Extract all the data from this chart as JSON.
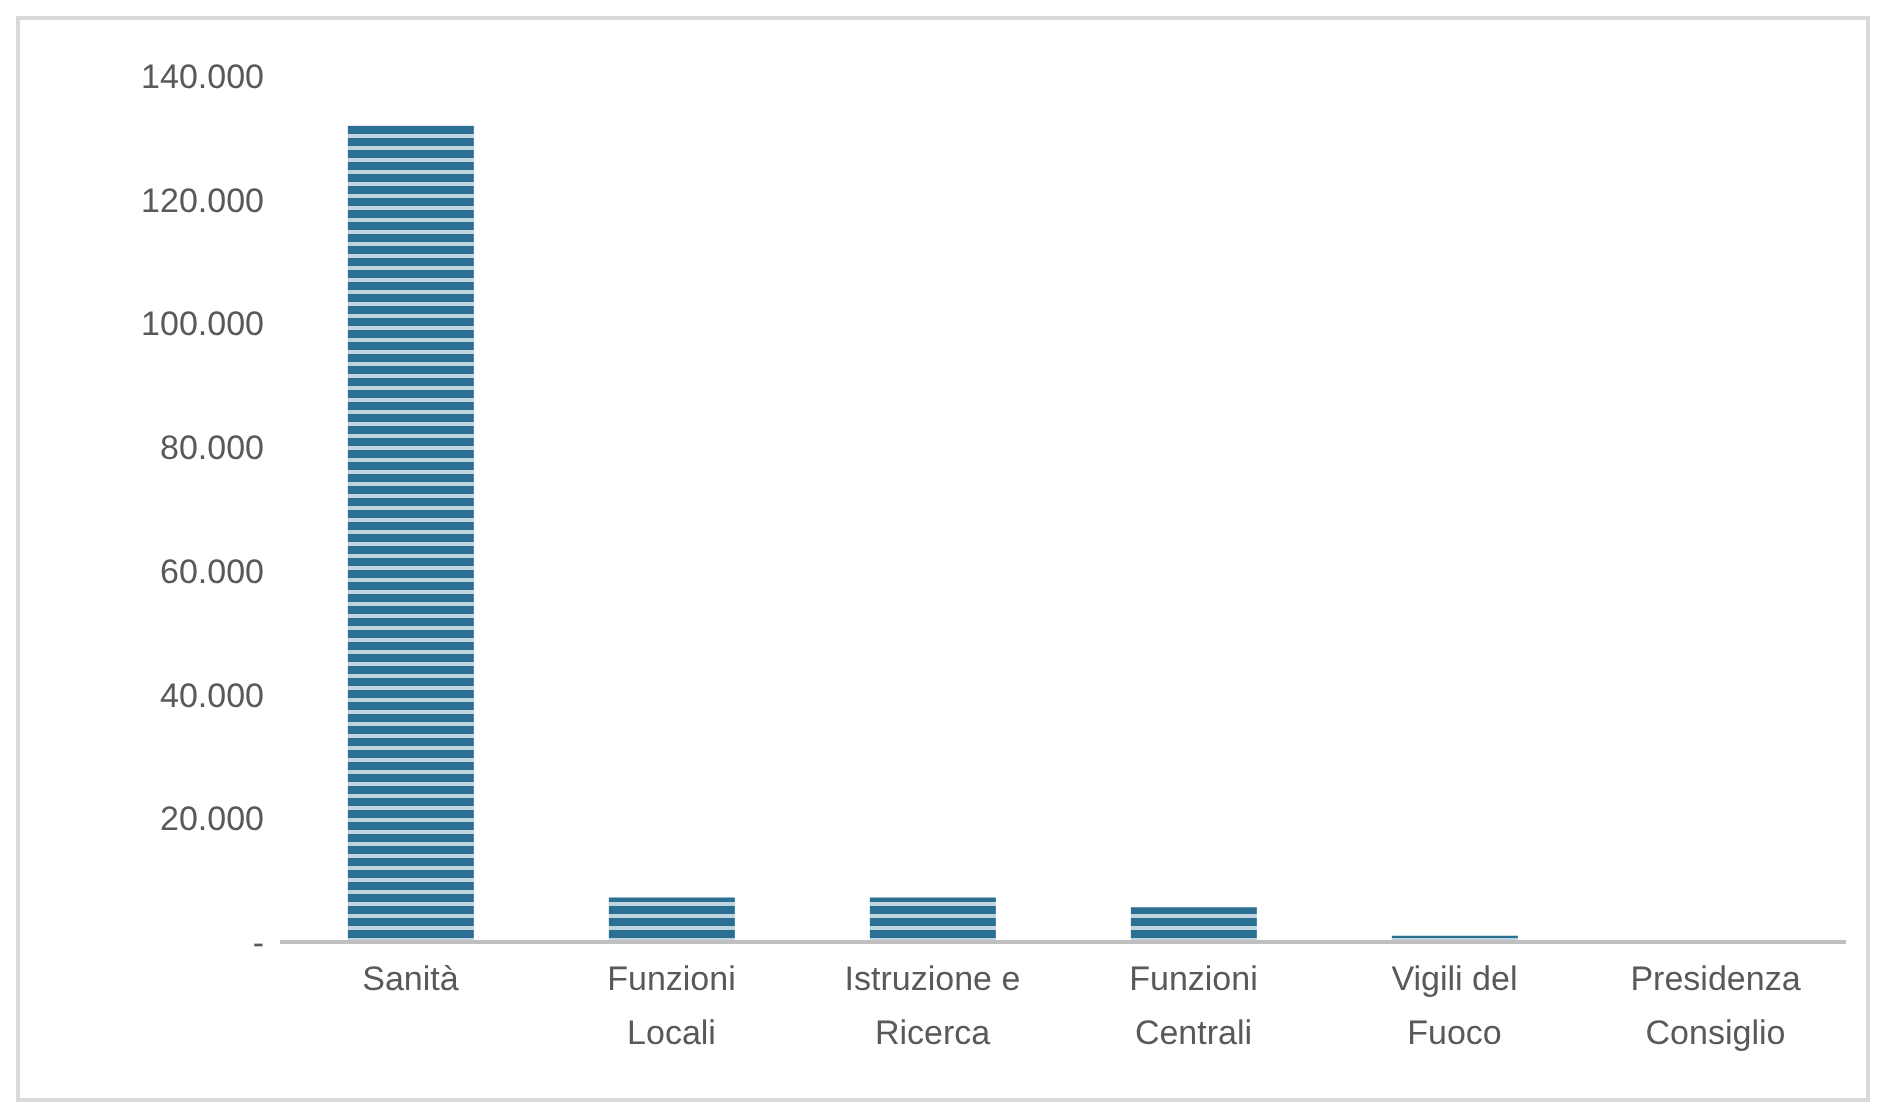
{
  "chart_data": {
    "type": "bar",
    "categories": [
      "Sanità",
      "Funzioni Locali",
      "Istruzione e Ricerca",
      "Funzioni Centrali",
      "Vigili del Fuoco",
      "Presidenza Consiglio"
    ],
    "values": [
      132000,
      7200,
      7200,
      5600,
      1000,
      0
    ],
    "color": "#2b6f93",
    "ylim": [
      0,
      140000
    ],
    "yticks": [
      {
        "value": 0,
        "label": "-"
      },
      {
        "value": 20000,
        "label": "20.000"
      },
      {
        "value": 40000,
        "label": "40.000"
      },
      {
        "value": 60000,
        "label": "60.000"
      },
      {
        "value": 80000,
        "label": "80.000"
      },
      {
        "value": 100000,
        "label": "100.000"
      },
      {
        "value": 120000,
        "label": "120.000"
      },
      {
        "value": 140000,
        "label": "140.000"
      }
    ],
    "grid": false,
    "legend": false
  }
}
